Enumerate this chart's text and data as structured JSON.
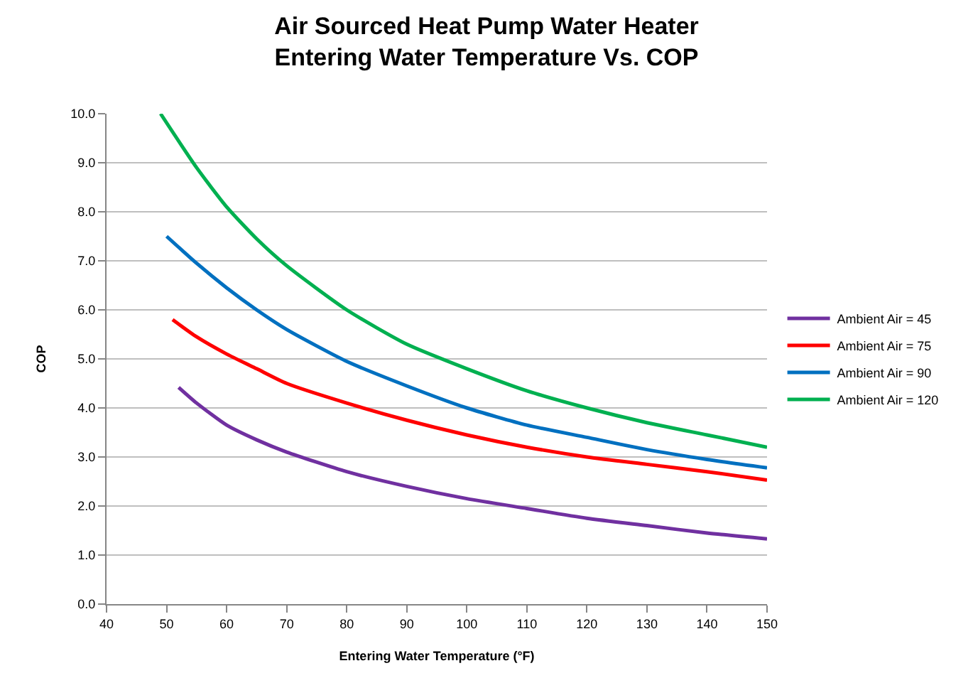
{
  "chart_data": {
    "type": "line",
    "title": "Air Sourced Heat Pump Water Heater\nEntering Water Temperature Vs. COP",
    "xlabel": "Entering Water Temperature (°F)",
    "ylabel": "COP",
    "xlim": [
      40,
      150
    ],
    "xticks": [
      40,
      50,
      60,
      70,
      80,
      90,
      100,
      110,
      120,
      130,
      140,
      150
    ],
    "ylim": [
      0,
      10
    ],
    "yticks": [
      {
        "value": 0,
        "label": "0.0"
      },
      {
        "value": 1,
        "label": "1.0"
      },
      {
        "value": 2,
        "label": "2.0"
      },
      {
        "value": 3,
        "label": "3.0"
      },
      {
        "value": 4,
        "label": "4.0"
      },
      {
        "value": 5,
        "label": "5.0"
      },
      {
        "value": 6,
        "label": "6.0"
      },
      {
        "value": 7,
        "label": "7.0"
      },
      {
        "value": 8,
        "label": "8.0"
      },
      {
        "value": 9,
        "label": "9.0"
      },
      {
        "value": 10,
        "label": "10.0"
      }
    ],
    "grid": "y",
    "legend": "right",
    "marker": "none",
    "line_style": "solid",
    "series": [
      {
        "name": "Ambient Air = 45",
        "color": "#7030a0",
        "x": [
          52,
          55,
          60,
          65,
          70,
          80,
          90,
          100,
          110,
          120,
          130,
          140,
          150
        ],
        "values": [
          4.42,
          4.1,
          3.65,
          3.35,
          3.1,
          2.7,
          2.4,
          2.15,
          1.95,
          1.75,
          1.6,
          1.45,
          1.33
        ]
      },
      {
        "name": "Ambient Air = 75",
        "color": "#ff0000",
        "x": [
          51,
          55,
          60,
          65,
          70,
          80,
          90,
          100,
          110,
          120,
          130,
          140,
          150
        ],
        "values": [
          5.8,
          5.45,
          5.1,
          4.8,
          4.5,
          4.1,
          3.75,
          3.45,
          3.2,
          3.0,
          2.85,
          2.7,
          2.53
        ]
      },
      {
        "name": "Ambient Air = 90",
        "color": "#0070c0",
        "x": [
          50,
          55,
          60,
          65,
          70,
          80,
          90,
          100,
          110,
          120,
          130,
          140,
          150
        ],
        "values": [
          7.5,
          6.95,
          6.45,
          6.0,
          5.6,
          4.95,
          4.45,
          4.0,
          3.65,
          3.4,
          3.15,
          2.95,
          2.78
        ]
      },
      {
        "name": "Ambient Air = 120",
        "color": "#00b050",
        "x": [
          49,
          55,
          60,
          65,
          70,
          80,
          90,
          100,
          110,
          120,
          130,
          140,
          150
        ],
        "values": [
          10.0,
          8.9,
          8.1,
          7.45,
          6.9,
          6.0,
          5.3,
          4.8,
          4.35,
          4.0,
          3.7,
          3.45,
          3.2
        ]
      }
    ]
  }
}
